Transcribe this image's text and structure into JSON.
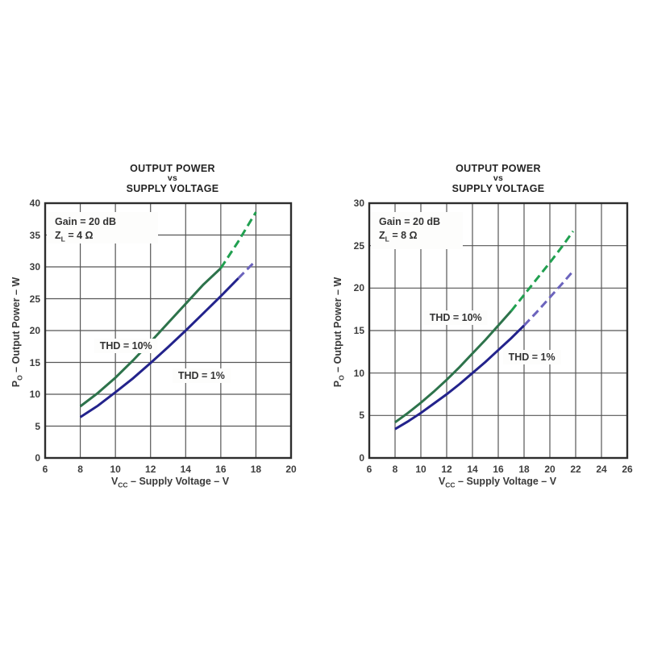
{
  "colors": {
    "grid": "#565656",
    "border": "#2d2d2d",
    "tick_text": "#3d3d3d",
    "label_text": "#3a3a3a",
    "title_text": "#242424",
    "thd10_solid": "#2d734b",
    "thd10_dashed": "#21a050",
    "thd1_solid": "#23238c",
    "thd1_dashed": "#6c64bd"
  },
  "chart_data": [
    {
      "type": "line",
      "title": [
        "OUTPUT POWER",
        "vs",
        "SUPPLY VOLTAGE"
      ],
      "xlabel": {
        "main": "V",
        "sub": "CC",
        "rest": " – Supply Voltage – V"
      },
      "ylabel": {
        "main": "P",
        "sub": "O",
        "rest": " – Output Power – W"
      },
      "annotation": {
        "line1": "Gain = 20 dB",
        "z_main": "Z",
        "z_sub": "L",
        "z_rest": " = 4 Ω"
      },
      "xlim": [
        6,
        20
      ],
      "ylim": [
        0,
        40
      ],
      "x_ticks": [
        6,
        8,
        10,
        12,
        14,
        16,
        18,
        20
      ],
      "y_ticks": [
        0,
        5,
        10,
        15,
        20,
        25,
        30,
        35,
        40
      ],
      "grid": true,
      "legend_position": "none",
      "series": [
        {
          "name": "THD = 10%",
          "solid_color": "#2d734b",
          "dash_color": "#21a050",
          "solid": [
            [
              8,
              8.1
            ],
            [
              9,
              10.2
            ],
            [
              10,
              12.6
            ],
            [
              11,
              15.3
            ],
            [
              12,
              18.2
            ],
            [
              13,
              21.2
            ],
            [
              14,
              24.2
            ],
            [
              15,
              27.2
            ],
            [
              16,
              29.8
            ]
          ],
          "dashed": [
            [
              16,
              29.8
            ],
            [
              17,
              34.0
            ],
            [
              18,
              38.6
            ]
          ]
        },
        {
          "name": "THD = 1%",
          "solid_color": "#23238c",
          "dash_color": "#6c64bd",
          "solid": [
            [
              8,
              6.4
            ],
            [
              9,
              8.2
            ],
            [
              10,
              10.3
            ],
            [
              11,
              12.5
            ],
            [
              12,
              14.9
            ],
            [
              13,
              17.4
            ],
            [
              14,
              20.0
            ],
            [
              15,
              22.7
            ],
            [
              16,
              25.4
            ],
            [
              17,
              28.2
            ]
          ],
          "dashed": [
            [
              17,
              28.2
            ],
            [
              18,
              31.0
            ]
          ]
        }
      ],
      "curve_labels": [
        {
          "text": "THD = 10%",
          "x": 10.6,
          "y": 17.6
        },
        {
          "text": "THD = 1%",
          "x": 14.9,
          "y": 12.9
        }
      ]
    },
    {
      "type": "line",
      "title": [
        "OUTPUT POWER",
        "vs",
        "SUPPLY VOLTAGE"
      ],
      "xlabel": {
        "main": "V",
        "sub": "CC",
        "rest": " – Supply Voltage – V"
      },
      "ylabel": {
        "main": "P",
        "sub": "O",
        "rest": " – Output Power – W"
      },
      "annotation": {
        "line1": "Gain = 20 dB",
        "z_main": "Z",
        "z_sub": "L",
        "z_rest": " = 8 Ω"
      },
      "xlim": [
        6,
        26
      ],
      "ylim": [
        0,
        30
      ],
      "x_ticks": [
        6,
        8,
        10,
        12,
        14,
        16,
        18,
        20,
        22,
        24,
        26
      ],
      "y_ticks": [
        0,
        5,
        10,
        15,
        20,
        25,
        30
      ],
      "grid": true,
      "legend_position": "none",
      "series": [
        {
          "name": "THD = 10%",
          "solid_color": "#2d734b",
          "dash_color": "#21a050",
          "solid": [
            [
              8,
              4.2
            ],
            [
              9,
              5.3
            ],
            [
              10,
              6.5
            ],
            [
              11,
              7.8
            ],
            [
              12,
              9.2
            ],
            [
              13,
              10.7
            ],
            [
              14,
              12.3
            ],
            [
              15,
              13.9
            ],
            [
              16,
              15.6
            ],
            [
              17,
              17.3
            ]
          ],
          "dashed": [
            [
              17,
              17.3
            ],
            [
              18,
              19.2
            ],
            [
              19,
              21.1
            ],
            [
              20,
              23.0
            ],
            [
              21,
              25.0
            ],
            [
              21.8,
              26.7
            ]
          ]
        },
        {
          "name": "THD = 1%",
          "solid_color": "#23238c",
          "dash_color": "#6c64bd",
          "solid": [
            [
              8,
              3.4
            ],
            [
              9,
              4.3
            ],
            [
              10,
              5.3
            ],
            [
              11,
              6.4
            ],
            [
              12,
              7.5
            ],
            [
              13,
              8.7
            ],
            [
              14,
              10.0
            ],
            [
              15,
              11.3
            ],
            [
              16,
              12.7
            ],
            [
              17,
              14.1
            ],
            [
              18,
              15.6
            ]
          ],
          "dashed": [
            [
              18,
              15.6
            ],
            [
              19,
              17.2
            ],
            [
              20,
              18.9
            ],
            [
              21,
              20.6
            ],
            [
              21.8,
              22.0
            ]
          ]
        }
      ],
      "curve_labels": [
        {
          "text": "THD = 10%",
          "x": 12.7,
          "y": 16.5
        },
        {
          "text": "THD = 1%",
          "x": 18.6,
          "y": 11.9
        }
      ]
    }
  ]
}
